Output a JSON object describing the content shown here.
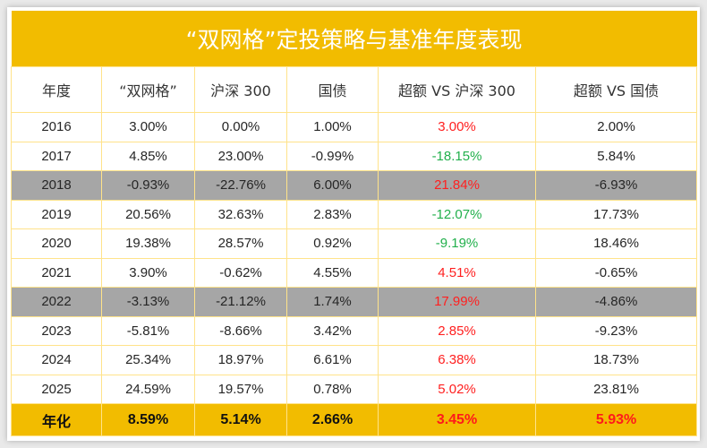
{
  "title": "“双网格”定投策略与基准年度表现",
  "colors": {
    "accent": "#F2BC00",
    "highlight_row": "#A6A6A6",
    "positive": "#FF2020",
    "negative": "#22B04C"
  },
  "headers": [
    "年度",
    "“双网格”",
    "沪深 300",
    "国债",
    "超额 VS 沪深 300",
    "超额 VS 国债"
  ],
  "rows": [
    {
      "year": "2016",
      "values": [
        "3.00%",
        "0.00%",
        "1.00%",
        "3.00%",
        "2.00%"
      ],
      "highlight": false
    },
    {
      "year": "2017",
      "values": [
        "4.85%",
        "23.00%",
        "-0.99%",
        "-18.15%",
        "5.84%"
      ],
      "highlight": false
    },
    {
      "year": "2018",
      "values": [
        "-0.93%",
        "-22.76%",
        "6.00%",
        "21.84%",
        "-6.93%"
      ],
      "highlight": true
    },
    {
      "year": "2019",
      "values": [
        "20.56%",
        "32.63%",
        "2.83%",
        "-12.07%",
        "17.73%"
      ],
      "highlight": false
    },
    {
      "year": "2020",
      "values": [
        "19.38%",
        "28.57%",
        "0.92%",
        "-9.19%",
        "18.46%"
      ],
      "highlight": false
    },
    {
      "year": "2021",
      "values": [
        "3.90%",
        "-0.62%",
        "4.55%",
        "4.51%",
        "-0.65%"
      ],
      "highlight": false
    },
    {
      "year": "2022",
      "values": [
        "-3.13%",
        "-21.12%",
        "1.74%",
        "17.99%",
        "-4.86%"
      ],
      "highlight": true
    },
    {
      "year": "2023",
      "values": [
        "-5.81%",
        "-8.66%",
        "3.42%",
        "2.85%",
        "-9.23%"
      ],
      "highlight": false
    },
    {
      "year": "2024",
      "values": [
        "25.34%",
        "18.97%",
        "6.61%",
        "6.38%",
        "18.73%"
      ],
      "highlight": false
    },
    {
      "year": "2025",
      "values": [
        "24.59%",
        "19.57%",
        "0.78%",
        "5.02%",
        "23.81%"
      ],
      "highlight": false
    }
  ],
  "total": {
    "label": "年化",
    "values": [
      "8.59%",
      "5.14%",
      "2.66%",
      "3.45%",
      "5.93%"
    ]
  }
}
